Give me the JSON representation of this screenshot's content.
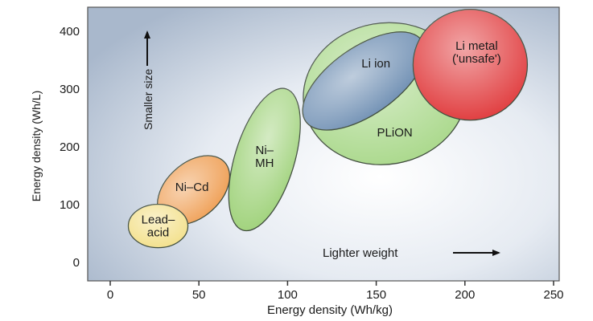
{
  "chart_data": {
    "type": "scatter",
    "title": "",
    "xlabel": "Energy density (Wh/kg)",
    "ylabel": "Energy density (Wh/L)",
    "xlim": [
      -12,
      253
    ],
    "ylim": [
      -30,
      440
    ],
    "xticks": [
      0,
      50,
      100,
      150,
      200,
      250
    ],
    "yticks": [
      0,
      100,
      200,
      300,
      400
    ],
    "grid": false,
    "legend": "none",
    "regions": [
      {
        "name": "Lead-acid",
        "label_lines": [
          "Lead–",
          "acid"
        ],
        "center": [
          27,
          63
        ],
        "color": "#f3e08a"
      },
      {
        "name": "Ni-Cd",
        "label_lines": [
          "Ni–Cd"
        ],
        "center": [
          47,
          125
        ],
        "color": "#ef9f55"
      },
      {
        "name": "Ni-MH",
        "label_lines": [
          "Ni–",
          "MH"
        ],
        "center": [
          87,
          178
        ],
        "color": "#9fd27a"
      },
      {
        "name": "PLiON",
        "label_lines": [
          "PLiON"
        ],
        "center": [
          155,
          292
        ],
        "color": "#a9d88a"
      },
      {
        "name": "Li ion",
        "label_lines": [
          "Li ion"
        ],
        "center": [
          143,
          314
        ],
        "color": "#6f8fb3"
      },
      {
        "name": "Li metal",
        "label_lines": [
          "Li metal",
          "('unsafe')"
        ],
        "center": [
          203,
          342
        ],
        "color": "#e0393b"
      }
    ],
    "annotations": {
      "vertical": "Smaller size",
      "horizontal": "Lighter weight"
    }
  }
}
